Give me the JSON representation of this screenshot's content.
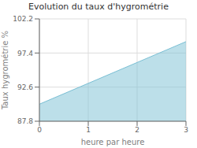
{
  "chart_data": {
    "type": "area",
    "title": "Evolution du taux d'hygrométrie",
    "x_label": "heure par heure",
    "y_label": "Taux hygrométrie %",
    "x": [
      0,
      3
    ],
    "values": [
      90.2,
      99.0
    ],
    "color": "#7abfd4",
    "xlim": [
      0,
      3
    ],
    "xticks": [
      0,
      1,
      2,
      3
    ],
    "ylim": [
      87.8,
      102.2
    ],
    "yticks": [
      87.8,
      92.6,
      97.4,
      102.2
    ],
    "grid": true
  }
}
